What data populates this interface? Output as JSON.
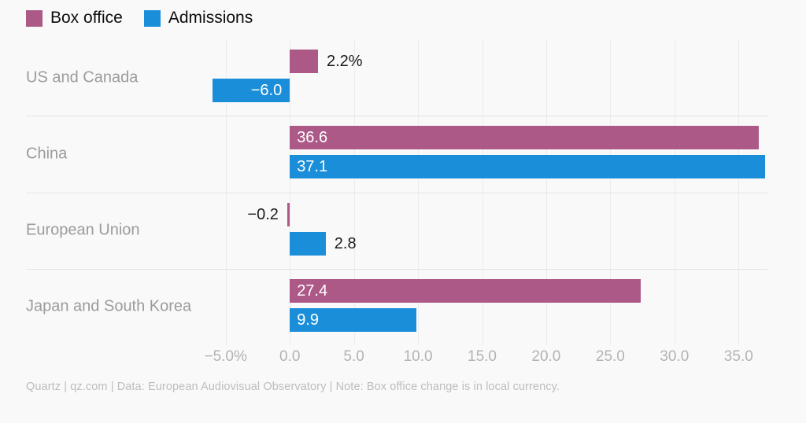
{
  "legend": {
    "items": [
      {
        "label": "Box office"
      },
      {
        "label": "Admissions"
      }
    ]
  },
  "footer": {
    "text": "Quartz | qz.com | Data: European Audiovisual Observatory | Note: Box office change is in local currency."
  },
  "colors": {
    "background": "#f9f9f9",
    "box_office": "#ac5988",
    "admissions": "#1b8ed9",
    "gridline": "#ececec",
    "separator": "#e5e5e5",
    "category_label": "#9b9b9b",
    "tick_label": "#b3b3b3",
    "value_label_inside": "#ffffff",
    "value_label_outside": "#1c1c1c",
    "footer_text": "#bdbdbd",
    "legend_text": "#0c0c0c"
  },
  "chart_data": {
    "type": "bar",
    "orientation": "horizontal",
    "title": "",
    "xlabel": "",
    "ylabel": "",
    "categories": [
      "US and Canada",
      "China",
      "European Union",
      "Japan and South Korea"
    ],
    "series": [
      {
        "name": "Box office",
        "color": "#ac5988",
        "values": [
          2.2,
          36.6,
          -0.2,
          27.4
        ],
        "value_labels": [
          "2.2%",
          "36.6",
          "−0.2",
          "27.4"
        ]
      },
      {
        "name": "Admissions",
        "color": "#1b8ed9",
        "values": [
          -6.0,
          37.1,
          2.8,
          9.9
        ],
        "value_labels": [
          "−6.0",
          "37.1",
          "2.8",
          "9.9"
        ]
      }
    ],
    "xlim": [
      -7.5,
      37.5
    ],
    "x_ticks": {
      "values": [
        -5,
        0,
        5,
        10,
        15,
        20,
        25,
        30,
        35
      ],
      "labels": [
        "−5.0%",
        "0.0",
        "5.0",
        "10.0",
        "15.0",
        "20.0",
        "25.0",
        "30.0",
        "35.0"
      ]
    },
    "grid": true,
    "legend_position": "top-left",
    "note": "Box office change is in local currency"
  }
}
